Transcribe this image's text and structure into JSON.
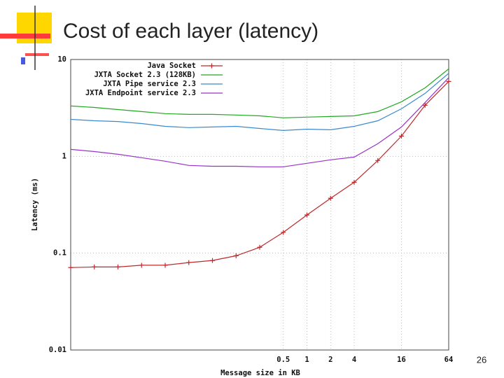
{
  "slide": {
    "title": "Cost of each layer (latency)",
    "page_number": "26"
  },
  "chart_data": {
    "type": "line",
    "x_label": "Message size in KB",
    "y_label": "Latency (ms)",
    "xscale": "log",
    "yscale": "log",
    "grid": true,
    "legend": "upper left",
    "x": [
      0.0009765625,
      0.001953125,
      0.00390625,
      0.0078125,
      0.015625,
      0.03125,
      0.0625,
      0.125,
      0.25,
      0.5,
      1,
      2,
      4,
      8,
      16,
      32,
      64
    ],
    "xlim": [
      0.0009765625,
      64
    ],
    "xticks": [
      0.5,
      1,
      2,
      4,
      16,
      64
    ],
    "ylim": [
      0.01,
      10
    ],
    "yticks": [
      0.01,
      0.1,
      1,
      10
    ],
    "series": [
      {
        "name": "Java Socket",
        "color": "#c0282b",
        "marker": "+",
        "values": [
          0.071,
          0.072,
          0.072,
          0.075,
          0.075,
          0.08,
          0.084,
          0.094,
          0.115,
          0.164,
          0.248,
          0.369,
          0.54,
          0.905,
          1.62,
          3.37,
          5.93
        ]
      },
      {
        "name": "JXTA Socket 2.3 (128KB)",
        "color": "#22a822",
        "values": [
          3.31,
          3.2,
          3.04,
          2.9,
          2.76,
          2.71,
          2.71,
          2.67,
          2.62,
          2.5,
          2.54,
          2.58,
          2.62,
          2.9,
          3.66,
          5.1,
          8.0
        ]
      },
      {
        "name": "JXTA Pipe service 2.3",
        "color": "#3a8ad0",
        "values": [
          2.41,
          2.33,
          2.29,
          2.18,
          2.04,
          1.98,
          2.01,
          2.04,
          1.94,
          1.85,
          1.91,
          1.88,
          2.04,
          2.33,
          3.1,
          4.47,
          7.2
        ]
      },
      {
        "name": "JXTA Endpoint service 2.3",
        "color": "#9933cc",
        "values": [
          1.18,
          1.12,
          1.05,
          0.967,
          0.89,
          0.806,
          0.79,
          0.79,
          0.78,
          0.78,
          0.847,
          0.92,
          0.983,
          1.35,
          2.01,
          3.6,
          6.5
        ]
      }
    ]
  }
}
